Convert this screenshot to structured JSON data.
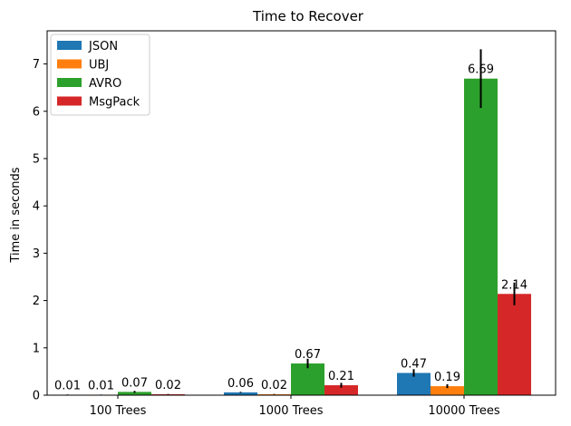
{
  "chart_data": {
    "type": "bar",
    "title": "Time to Recover",
    "xlabel": "",
    "ylabel": "Time in seconds",
    "categories": [
      "100 Trees",
      "1000 Trees",
      "10000 Trees"
    ],
    "ylim": [
      0,
      7.7
    ],
    "yticks": [
      0,
      1,
      2,
      3,
      4,
      5,
      6,
      7
    ],
    "legend_position": "top-left",
    "series": [
      {
        "name": "JSON",
        "color": "#1f77b4",
        "values": [
          0.01,
          0.06,
          0.47
        ],
        "labels": [
          "0.01",
          "0.06",
          "0.47"
        ],
        "errors": [
          0.005,
          0.01,
          0.08
        ]
      },
      {
        "name": "UBJ",
        "color": "#ff7f0e",
        "values": [
          0.01,
          0.02,
          0.19
        ],
        "labels": [
          "0.01",
          "0.02",
          "0.19"
        ],
        "errors": [
          0.003,
          0.005,
          0.04
        ]
      },
      {
        "name": "AVRO",
        "color": "#2ca02c",
        "values": [
          0.07,
          0.67,
          6.69
        ],
        "labels": [
          "0.07",
          "0.67",
          "6.69"
        ],
        "errors": [
          0.02,
          0.1,
          0.62
        ]
      },
      {
        "name": "MsgPack",
        "color": "#d62728",
        "values": [
          0.02,
          0.21,
          2.14
        ],
        "labels": [
          "0.02",
          "0.21",
          "2.14"
        ],
        "errors": [
          0.005,
          0.05,
          0.24
        ]
      }
    ]
  }
}
